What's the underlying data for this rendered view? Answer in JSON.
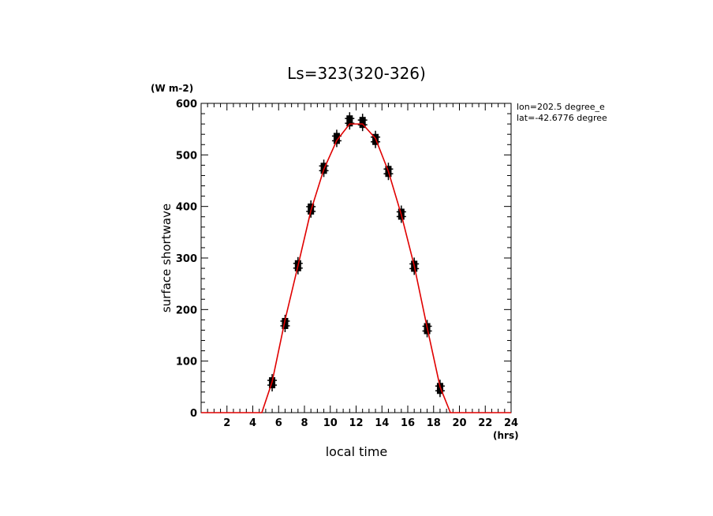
{
  "chart_data": {
    "type": "line",
    "title": "Ls=323(320-326)",
    "ylabel": "surface shortwave",
    "yunit": "(W m-2)",
    "xlabel": "local time",
    "xunit": "(hrs)",
    "annotations": [
      "lon=202.5 degree_e",
      "lat=-42.6776 degree"
    ],
    "xlim": [
      0,
      24
    ],
    "ylim": [
      0,
      600
    ],
    "xticks": [
      2,
      4,
      6,
      8,
      10,
      12,
      14,
      16,
      18,
      20,
      22,
      24
    ],
    "yticks": [
      0,
      100,
      200,
      300,
      400,
      500,
      600
    ],
    "line_color": "#e00000",
    "marker_color": "#000000",
    "series": [
      {
        "kind": "line",
        "color": "#e00000",
        "x": [
          0,
          0.5,
          1.5,
          2.5,
          3.5,
          4.5,
          4.7,
          5.5,
          6.5,
          7.5,
          8.5,
          9.5,
          10.5,
          11.5,
          12.5,
          13.5,
          14.5,
          15.5,
          16.5,
          17.5,
          18.5,
          19.3,
          19.5,
          20.5,
          21.5,
          22.5,
          23.5,
          24
        ],
        "y": [
          0,
          0,
          0,
          0,
          0,
          0,
          0,
          60,
          180,
          285,
          392,
          472,
          528,
          560,
          560,
          532,
          468,
          384,
          285,
          165,
          50,
          0,
          0,
          0,
          0,
          0,
          0,
          0
        ]
      },
      {
        "kind": "scatter",
        "color": "#000000",
        "x": [
          5.5,
          6.5,
          7.5,
          8.5,
          9.5,
          10.5,
          11.5,
          12.5,
          13.5,
          14.5,
          15.5,
          16.5,
          17.5,
          18.5
        ],
        "y": [
          58,
          173,
          285,
          395,
          474,
          532,
          566,
          563,
          530,
          468,
          385,
          284,
          163,
          47
        ]
      }
    ]
  }
}
